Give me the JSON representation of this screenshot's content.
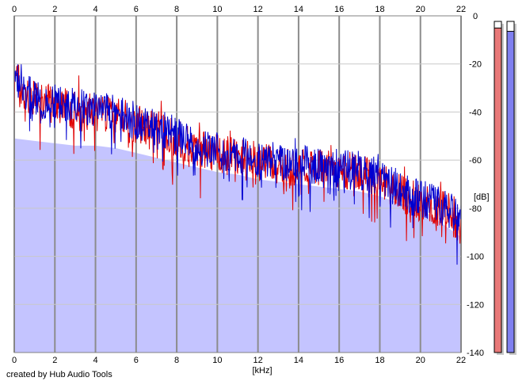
{
  "chart_data": {
    "type": "area",
    "xlabel": "[kHz]",
    "ylabel": "[dB]",
    "xlim": [
      0,
      22
    ],
    "ylim": [
      -140,
      0
    ],
    "x_ticks": [
      0,
      2,
      4,
      6,
      8,
      10,
      12,
      14,
      16,
      18,
      20,
      22
    ],
    "y_ticks": [
      0,
      -20,
      -40,
      -60,
      -80,
      -100,
      -120,
      -140
    ],
    "grid": true,
    "series": [
      {
        "color": "#e00000",
        "x": [
          0,
          0.25,
          0.5,
          0.75,
          1,
          1.5,
          2,
          2.5,
          3,
          3.5,
          4,
          4.5,
          5,
          5.5,
          6,
          6.5,
          7,
          7.5,
          8,
          8.5,
          9,
          9.5,
          10,
          10.5,
          11,
          11.5,
          12,
          12.5,
          13,
          13.5,
          14,
          14.5,
          15,
          15.5,
          16,
          16.5,
          17,
          17.5,
          18,
          18.5,
          19,
          19.5,
          20,
          20.5,
          21,
          21.5,
          22
        ],
        "values": [
          -27,
          -30,
          -33,
          -34,
          -35,
          -36,
          -37,
          -38,
          -39,
          -40,
          -40,
          -41,
          -42,
          -43,
          -45,
          -46,
          -47,
          -49,
          -51,
          -53,
          -55,
          -56,
          -57,
          -58,
          -59,
          -60,
          -60,
          -61,
          -62,
          -62,
          -63,
          -63,
          -63,
          -64,
          -64,
          -65,
          -65,
          -67,
          -68,
          -71,
          -73,
          -76,
          -77,
          -78,
          -80,
          -82,
          -88
        ]
      },
      {
        "color": "#0000d0",
        "x": [
          0,
          0.25,
          0.5,
          0.75,
          1,
          1.5,
          2,
          2.5,
          3,
          3.5,
          4,
          4.5,
          5,
          5.5,
          6,
          6.5,
          7,
          7.5,
          8,
          8.5,
          9,
          9.5,
          10,
          10.5,
          11,
          11.5,
          12,
          12.5,
          13,
          13.5,
          14,
          14.5,
          15,
          15.5,
          16,
          16.5,
          17,
          17.5,
          18,
          18.5,
          19,
          19.5,
          20,
          20.5,
          21,
          21.5,
          22
        ],
        "values": [
          -26,
          -29,
          -32,
          -33,
          -34,
          -35,
          -36,
          -37,
          -38,
          -39,
          -39,
          -40,
          -41,
          -42,
          -44,
          -45,
          -46,
          -48,
          -50,
          -52,
          -54,
          -55,
          -56,
          -57,
          -58,
          -59,
          -59,
          -60,
          -61,
          -61,
          -62,
          -62,
          -62,
          -63,
          -63,
          -64,
          -64,
          -66,
          -67,
          -70,
          -72,
          -75,
          -76,
          -77,
          -79,
          -81,
          -86
        ]
      }
    ],
    "fill_area": {
      "color": "#c4c4ff",
      "x": [
        0,
        1,
        2,
        3,
        4,
        5,
        6,
        7,
        8,
        9,
        10,
        11,
        12,
        13,
        14,
        15,
        16,
        17,
        18,
        19,
        20,
        21,
        22
      ],
      "values": [
        -51,
        -52,
        -53,
        -54,
        -54,
        -55,
        -57,
        -59,
        -61,
        -63,
        -65,
        -66,
        -68,
        -69,
        -70,
        -71,
        -72,
        -73,
        -75,
        -78,
        -80,
        -86,
        -92
      ]
    },
    "level_meters": [
      {
        "color": "#e87878",
        "level": 0.98
      },
      {
        "color": "#8080f0",
        "level": 0.97
      }
    ]
  },
  "footer": {
    "credit": "created by Hub Audio Tools"
  }
}
